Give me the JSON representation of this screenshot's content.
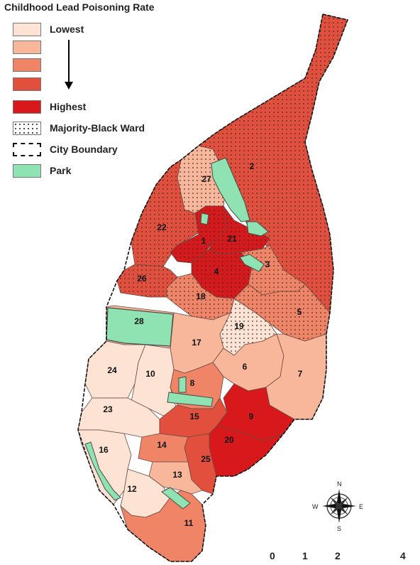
{
  "legend": {
    "title": "Childhood Lead Poisoning Rate",
    "items": [
      {
        "label": "Lowest",
        "color": "#fde3d3"
      },
      {
        "label": "",
        "color": "#f8b79a"
      },
      {
        "label": "",
        "color": "#ef8467"
      },
      {
        "label": "",
        "color": "#e2503d"
      },
      {
        "label": "Highest",
        "color": "#d7191c"
      },
      {
        "label": "Majority-Black Ward",
        "pattern": "dots"
      },
      {
        "label": "City Boundary",
        "pattern": "dashed"
      },
      {
        "label": "Park",
        "color": "#8fe3b2"
      }
    ]
  },
  "wards": [
    {
      "id": "2",
      "rate_class": 4,
      "majority_black": true
    },
    {
      "id": "27",
      "rate_class": 2,
      "majority_black": true
    },
    {
      "id": "22",
      "rate_class": 4,
      "majority_black": true
    },
    {
      "id": "1",
      "rate_class": 5,
      "majority_black": true
    },
    {
      "id": "21",
      "rate_class": 5,
      "majority_black": true
    },
    {
      "id": "4",
      "rate_class": 5,
      "majority_black": true
    },
    {
      "id": "3",
      "rate_class": 3,
      "majority_black": true
    },
    {
      "id": "26",
      "rate_class": 4,
      "majority_black": true
    },
    {
      "id": "18",
      "rate_class": 3,
      "majority_black": true
    },
    {
      "id": "5",
      "rate_class": 3,
      "majority_black": true
    },
    {
      "id": "19",
      "rate_class": 1,
      "majority_black": true
    },
    {
      "id": "28",
      "rate_class": 2,
      "majority_black": false
    },
    {
      "id": "17",
      "rate_class": 2,
      "majority_black": false
    },
    {
      "id": "6",
      "rate_class": 2,
      "majority_black": false
    },
    {
      "id": "7",
      "rate_class": 2,
      "majority_black": false
    },
    {
      "id": "24",
      "rate_class": 1,
      "majority_black": false
    },
    {
      "id": "10",
      "rate_class": 1,
      "majority_black": false
    },
    {
      "id": "8",
      "rate_class": 3,
      "majority_black": false
    },
    {
      "id": "23",
      "rate_class": 1,
      "majority_black": false
    },
    {
      "id": "15",
      "rate_class": 4,
      "majority_black": false
    },
    {
      "id": "9",
      "rate_class": 5,
      "majority_black": false
    },
    {
      "id": "20",
      "rate_class": 5,
      "majority_black": false
    },
    {
      "id": "16",
      "rate_class": 1,
      "majority_black": false
    },
    {
      "id": "14",
      "rate_class": 3,
      "majority_black": false
    },
    {
      "id": "25",
      "rate_class": 4,
      "majority_black": false
    },
    {
      "id": "13",
      "rate_class": 2,
      "majority_black": false
    },
    {
      "id": "12",
      "rate_class": 1,
      "majority_black": false
    },
    {
      "id": "11",
      "rate_class": 3,
      "majority_black": false
    }
  ],
  "compass": {
    "n": "N",
    "s": "S",
    "e": "E",
    "w": "W"
  },
  "scale_bar": {
    "ticks": [
      "0",
      "1",
      "2",
      "4"
    ]
  }
}
